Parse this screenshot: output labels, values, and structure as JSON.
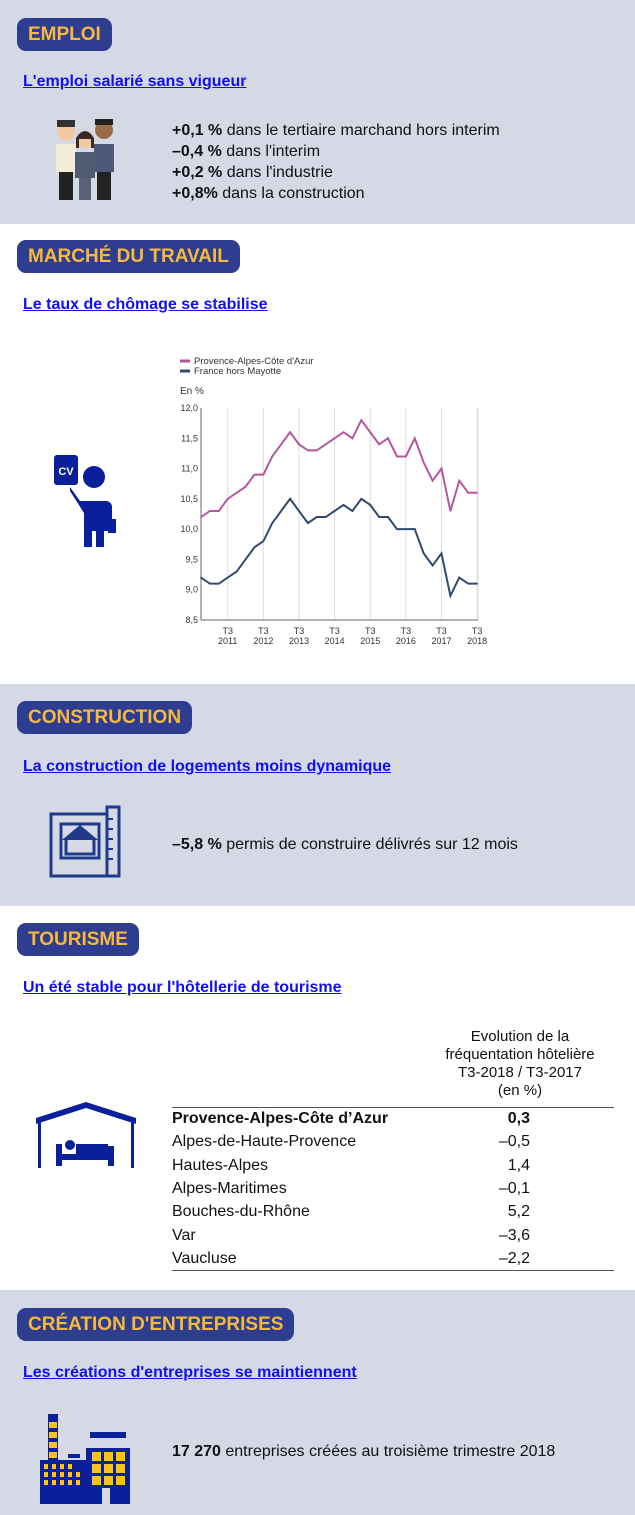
{
  "emploi": {
    "title": "EMPLOI",
    "link": "L'emploi salarié sans vigueur",
    "items": [
      {
        "value": "+0,1 %",
        "text": " dans le tertiaire marchand hors interim"
      },
      {
        "value": "–0,4 %",
        "text": " dans l'interim"
      },
      {
        "value": "+0,2 %",
        "text": " dans l'industrie"
      },
      {
        "value": "+0,8%",
        "text": " dans la construction"
      }
    ]
  },
  "marche": {
    "title": "MARCHÉ DU TRAVAIL",
    "link": "Le taux de chômage se stabilise",
    "icon_label": "CV"
  },
  "chart_data": {
    "type": "line",
    "ylabel": "En %",
    "ylim": [
      8.5,
      12.0
    ],
    "yticks": [
      "8,5",
      "9,0",
      "9,5",
      "10,0",
      "10,5",
      "11,0",
      "11,5",
      "12,0"
    ],
    "xticks": [
      {
        "q": "T3",
        "y": "2011"
      },
      {
        "q": "T3",
        "y": "2012"
      },
      {
        "q": "T3",
        "y": "2013"
      },
      {
        "q": "T3",
        "y": "2014"
      },
      {
        "q": "T3",
        "y": "2015"
      },
      {
        "q": "T3",
        "y": "2016"
      },
      {
        "q": "T3",
        "y": "2017"
      },
      {
        "q": "T3",
        "y": "2018"
      }
    ],
    "x": [
      "T4 2010",
      "T1 2011",
      "T2 2011",
      "T3 2011",
      "T4 2011",
      "T1 2012",
      "T2 2012",
      "T3 2012",
      "T4 2012",
      "T1 2013",
      "T2 2013",
      "T3 2013",
      "T4 2013",
      "T1 2014",
      "T2 2014",
      "T3 2014",
      "T4 2014",
      "T1 2015",
      "T2 2015",
      "T3 2015",
      "T4 2015",
      "T1 2016",
      "T2 2016",
      "T3 2016",
      "T4 2016",
      "T1 2017",
      "T2 2017",
      "T3 2017",
      "T4 2017",
      "T1 2018",
      "T2 2018",
      "T3 2018"
    ],
    "legend": "top-left",
    "grid": "vertical",
    "series": [
      {
        "name": "Provence-Alpes-Côte d'Azur",
        "color": "#b5579b",
        "values": [
          10.2,
          10.3,
          10.3,
          10.5,
          10.6,
          10.7,
          10.9,
          10.9,
          11.2,
          11.4,
          11.6,
          11.4,
          11.3,
          11.3,
          11.4,
          11.5,
          11.6,
          11.5,
          11.8,
          11.6,
          11.4,
          11.5,
          11.2,
          11.2,
          11.5,
          11.1,
          10.8,
          11.0,
          10.3,
          10.8,
          10.6,
          10.6
        ]
      },
      {
        "name": "France hors Mayotte",
        "color": "#2f4a6e",
        "values": [
          9.2,
          9.1,
          9.1,
          9.2,
          9.3,
          9.5,
          9.7,
          9.8,
          10.1,
          10.3,
          10.5,
          10.3,
          10.1,
          10.2,
          10.2,
          10.3,
          10.4,
          10.3,
          10.5,
          10.4,
          10.2,
          10.2,
          10.0,
          10.0,
          10.0,
          9.6,
          9.4,
          9.6,
          8.9,
          9.2,
          9.1,
          9.1
        ]
      }
    ]
  },
  "construction": {
    "title": "CONSTRUCTION",
    "link": "La construction de logements moins dynamique",
    "value": "–5,8 %",
    "text": " permis de construire délivrés sur 12 mois"
  },
  "tourisme": {
    "title": "TOURISME",
    "link": "Un été stable pour l'hôtellerie de tourisme",
    "header": [
      "Evolution de la",
      "fréquentation hôtelière",
      "T3-2018 / T3-2017",
      "(en %)"
    ],
    "rows": [
      {
        "name": "Provence-Alpes-Côte d’Azur",
        "value": "0,3"
      },
      {
        "name": "Alpes-de-Haute-Provence",
        "value": "–0,5"
      },
      {
        "name": "Hautes-Alpes",
        "value": "1,4"
      },
      {
        "name": "Alpes-Maritimes",
        "value": "–0,1"
      },
      {
        "name": "Bouches-du-Rhône",
        "value": "5,2"
      },
      {
        "name": "Var",
        "value": "–3,6"
      },
      {
        "name": "Vaucluse",
        "value": "–2,2"
      }
    ]
  },
  "entreprises": {
    "title": "CRÉATION D'ENTREPRISES",
    "link": "Les créations d'entreprises se maintiennent",
    "value": "17 270",
    "text": " entreprises créées au troisième trimestre 2018"
  },
  "colors": {
    "band": "#d5d9e6",
    "pill": "#2e3d8f",
    "pill_text": "#f6b93b",
    "link": "#1010ee",
    "icon_blue": "#0a1f9a",
    "icon_yellow": "#fdc21a"
  }
}
